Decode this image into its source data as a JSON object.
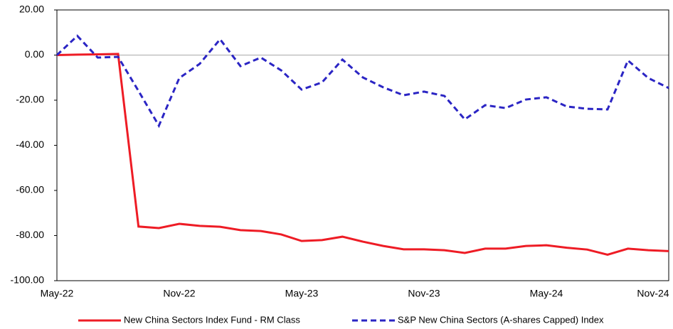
{
  "chart_data": {
    "type": "line",
    "categories": [
      "May-22",
      null,
      null,
      null,
      null,
      null,
      "Nov-22",
      null,
      null,
      null,
      null,
      null,
      "May-23",
      null,
      null,
      null,
      null,
      null,
      "Nov-23",
      null,
      null,
      null,
      null,
      null,
      "May-24",
      null,
      null,
      null,
      null,
      null,
      "Nov-24"
    ],
    "series": [
      {
        "name": "New China Sectors Index Fund - RM Class",
        "color": "#ee1c25",
        "dash": "solid",
        "values": [
          0,
          0.2,
          0.3,
          0.5,
          -76,
          -76.7,
          -74.8,
          -75.7,
          -76.1,
          -77.6,
          -78,
          -79.5,
          -82.4,
          -82,
          -80.5,
          -82.7,
          -84.6,
          -86.1,
          -86.1,
          -86.5,
          -87.7,
          -85.8,
          -85.8,
          -84.6,
          -84.3,
          -85.4,
          -86.2,
          -88.5,
          -85.8,
          -86.5,
          -86.9
        ]
      },
      {
        "name": "S&P New China Sectors (A-shares Capped) Index",
        "color": "#2b25c4",
        "dash": "dashed",
        "values": [
          0,
          8.5,
          -1.1,
          -0.8,
          -15.9,
          -31.3,
          -10.2,
          -3.9,
          7,
          -4.9,
          -1.1,
          -6.8,
          -15.3,
          -12.1,
          -2,
          -9.9,
          -14.3,
          -17.8,
          -16.2,
          -18.1,
          -28.5,
          -22.2,
          -23.5,
          -19.7,
          -18.7,
          -22.8,
          -23.8,
          -24.1,
          -2.4,
          -10.2,
          -14.6
        ]
      }
    ],
    "ylim": [
      -100,
      20
    ],
    "yticks": [
      {
        "value": -100,
        "label": "-100.00"
      },
      {
        "value": -80,
        "label": "-80.00"
      },
      {
        "value": -60,
        "label": "-60.00"
      },
      {
        "value": -40,
        "label": "-40.00"
      },
      {
        "value": -20,
        "label": "-20.00"
      },
      {
        "value": 0,
        "label": "0.00"
      },
      {
        "value": 20,
        "label": "20.00"
      }
    ],
    "zero_line": true,
    "legend": "bottom"
  }
}
